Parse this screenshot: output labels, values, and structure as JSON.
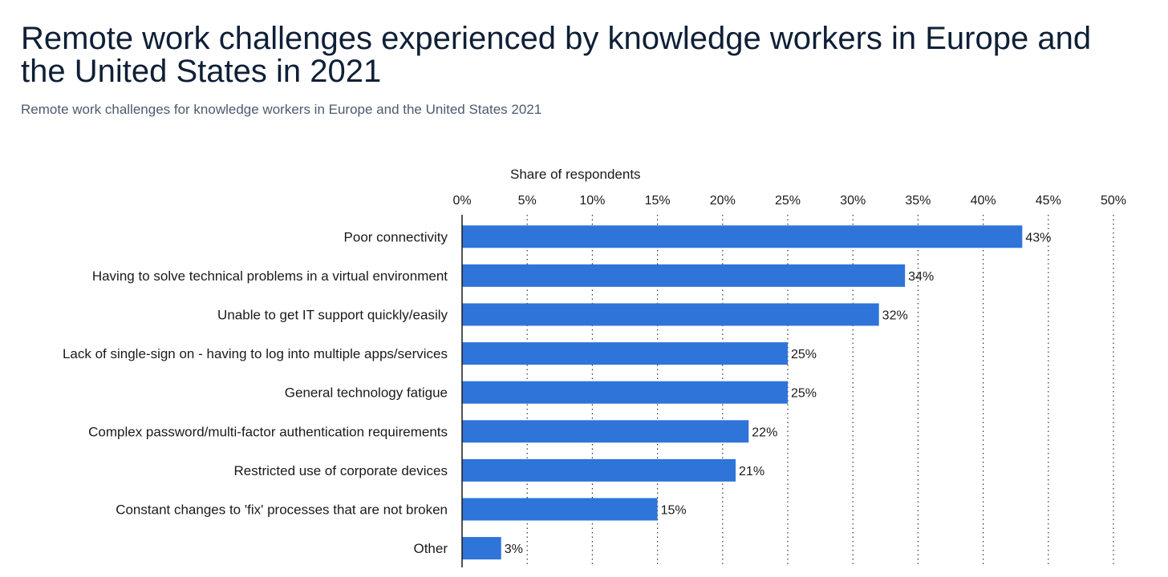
{
  "colors": {
    "bar": "#2f74d8",
    "text": "#1a1a1a",
    "title": "#0f1f36",
    "subtitle": "#4b5b70",
    "grid": "#333333",
    "axis": "#1a1a1a"
  },
  "chart_data": {
    "type": "bar",
    "orientation": "horizontal",
    "title": "Remote work challenges experienced by knowledge workers in Europe and the United States in 2021",
    "subtitle": "Remote work challenges for knowledge workers in Europe and the United States 2021",
    "xlabel": "Share of respondents",
    "xlim": [
      0,
      50
    ],
    "xticks": [
      "0%",
      "5%",
      "10%",
      "15%",
      "20%",
      "25%",
      "30%",
      "35%",
      "40%",
      "45%",
      "50%"
    ],
    "grid": "vertical dotted",
    "categories": [
      "Poor connectivity",
      "Having to solve technical problems in a virtual environment",
      "Unable to get IT support quickly/easily",
      "Lack of single-sign on - having to log into multiple apps/services",
      "General technology fatigue",
      "Complex password/multi-factor authentication requirements",
      "Restricted use of corporate devices",
      "Constant changes to 'fix' processes that are not broken",
      "Other"
    ],
    "values": [
      43,
      34,
      32,
      25,
      25,
      22,
      21,
      15,
      3
    ],
    "value_labels": [
      "43%",
      "34%",
      "32%",
      "25%",
      "25%",
      "22%",
      "21%",
      "15%",
      "3%"
    ]
  }
}
